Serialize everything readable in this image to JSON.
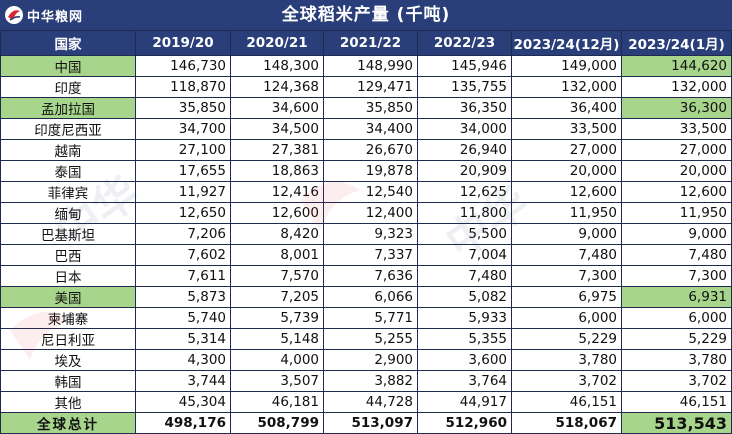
{
  "title": "全球稻米产量 (千吨)",
  "logo_text": "中华粮网",
  "columns": [
    "国家",
    "2019/20",
    "2020/21",
    "2021/22",
    "2022/23",
    "2023/24(12月)",
    "2023/24(1月)"
  ],
  "rows": [
    {
      "country": "中国",
      "values": [
        "146,730",
        "148,300",
        "148,990",
        "145,946",
        "149,000",
        "144,620"
      ],
      "highlight": true
    },
    {
      "country": "印度",
      "values": [
        "118,870",
        "124,368",
        "129,471",
        "135,755",
        "132,000",
        "132,000"
      ],
      "highlight": false
    },
    {
      "country": "孟加拉国",
      "values": [
        "35,850",
        "34,600",
        "35,850",
        "36,350",
        "36,400",
        "36,300"
      ],
      "highlight": true
    },
    {
      "country": "印度尼西亚",
      "values": [
        "34,700",
        "34,500",
        "34,400",
        "34,000",
        "33,500",
        "33,500"
      ],
      "highlight": false
    },
    {
      "country": "越南",
      "values": [
        "27,100",
        "27,381",
        "26,670",
        "26,940",
        "27,000",
        "27,000"
      ],
      "highlight": false
    },
    {
      "country": "泰国",
      "values": [
        "17,655",
        "18,863",
        "19,878",
        "20,909",
        "20,000",
        "20,000"
      ],
      "highlight": false
    },
    {
      "country": "菲律宾",
      "values": [
        "11,927",
        "12,416",
        "12,540",
        "12,625",
        "12,600",
        "12,600"
      ],
      "highlight": false
    },
    {
      "country": "缅甸",
      "values": [
        "12,650",
        "12,600",
        "12,400",
        "11,800",
        "11,950",
        "11,950"
      ],
      "highlight": false
    },
    {
      "country": "巴基斯坦",
      "values": [
        "7,206",
        "8,420",
        "9,323",
        "5,500",
        "9,000",
        "9,000"
      ],
      "highlight": false
    },
    {
      "country": "巴西",
      "values": [
        "7,602",
        "8,001",
        "7,337",
        "7,004",
        "7,480",
        "7,480"
      ],
      "highlight": false
    },
    {
      "country": "日本",
      "values": [
        "7,611",
        "7,570",
        "7,636",
        "7,480",
        "7,300",
        "7,300"
      ],
      "highlight": false
    },
    {
      "country": "美国",
      "values": [
        "5,873",
        "7,205",
        "6,066",
        "5,082",
        "6,975",
        "6,931"
      ],
      "highlight": true
    },
    {
      "country": "柬埔寨",
      "values": [
        "5,740",
        "5,739",
        "5,771",
        "5,933",
        "6,000",
        "6,000"
      ],
      "highlight": false
    },
    {
      "country": "尼日利亚",
      "values": [
        "5,314",
        "5,148",
        "5,255",
        "5,355",
        "5,229",
        "5,229"
      ],
      "highlight": false
    },
    {
      "country": "埃及",
      "values": [
        "4,300",
        "4,000",
        "2,900",
        "3,600",
        "3,780",
        "3,780"
      ],
      "highlight": false
    },
    {
      "country": "韩国",
      "values": [
        "3,744",
        "3,507",
        "3,882",
        "3,764",
        "3,702",
        "3,702"
      ],
      "highlight": false
    },
    {
      "country": "其他",
      "values": [
        "45,304",
        "46,181",
        "44,728",
        "44,917",
        "46,151",
        "46,151"
      ],
      "highlight": false
    }
  ],
  "total": {
    "country": "全球总计",
    "values": [
      "498,176",
      "508,799",
      "513,097",
      "512,960",
      "518,067",
      "513,543"
    ]
  },
  "colors": {
    "header_bg": "#2a3f7a",
    "highlight_bg": "#a8d58c",
    "border": "#1e2b4f"
  }
}
